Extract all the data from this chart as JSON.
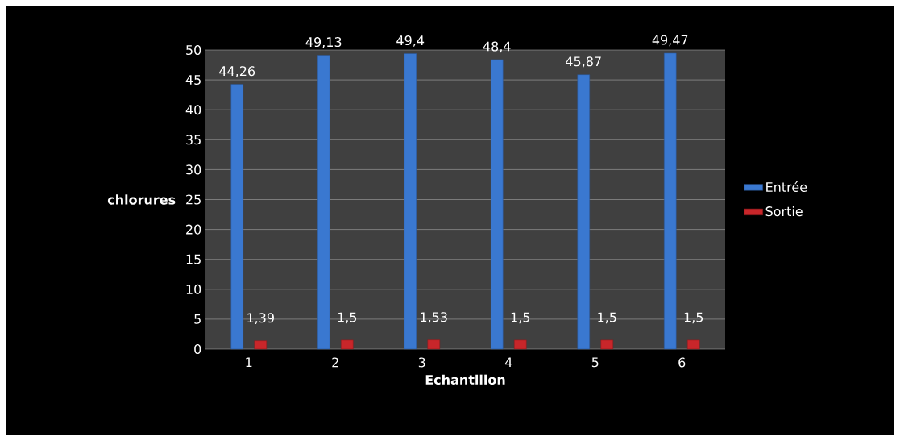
{
  "chart_data": {
    "type": "bar",
    "xlabel": "Echantillon",
    "ylabel": "chlorures",
    "categories": [
      "1",
      "2",
      "3",
      "4",
      "5",
      "6"
    ],
    "series": [
      {
        "name": "Entrée",
        "color": "#3a78d0",
        "values": [
          44.26,
          49.13,
          49.4,
          48.4,
          45.87,
          49.47
        ],
        "value_labels": [
          "44,26",
          "49,13",
          "49,4",
          "48,4",
          "45,87",
          "49,47"
        ]
      },
      {
        "name": "Sortie",
        "color": "#c8262a",
        "values": [
          1.39,
          1.5,
          1.53,
          1.5,
          1.5,
          1.5
        ],
        "value_labels": [
          "1,39",
          "1,5",
          "1,53",
          "1,5",
          "1,5",
          "1,5"
        ]
      }
    ],
    "ylim": [
      0,
      50
    ],
    "yticks": [
      0,
      5,
      10,
      15,
      20,
      25,
      30,
      35,
      40,
      45,
      50
    ],
    "grid": "y",
    "legend": "right"
  }
}
